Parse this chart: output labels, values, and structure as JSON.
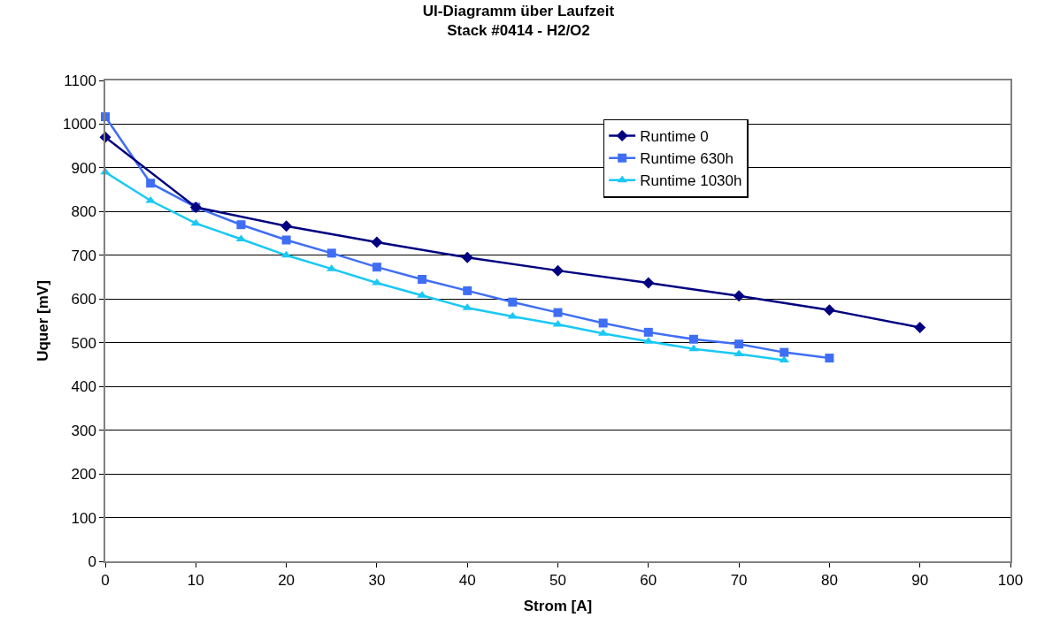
{
  "chart_data": {
    "type": "line",
    "title": "UI-Diagramm über Laufzeit",
    "subtitle": "Stack #0414 - H2/O2",
    "xlabel": "Strom [A]",
    "ylabel": "Uquer [mV]",
    "xlim": [
      0,
      100
    ],
    "xticks": [
      0,
      10,
      20,
      30,
      40,
      50,
      60,
      70,
      80,
      90,
      100
    ],
    "ylim": [
      0,
      1100
    ],
    "yticks": [
      0,
      100,
      200,
      300,
      400,
      500,
      600,
      700,
      800,
      900,
      1000,
      1100
    ],
    "grid": "y",
    "legend": "top right",
    "line_style": "solid",
    "series": [
      {
        "name": "Runtime 0",
        "color": "#000080",
        "marker": "diamond",
        "x": [
          0,
          10,
          20,
          30,
          40,
          50,
          60,
          70,
          80,
          90
        ],
        "values": [
          970,
          810,
          767,
          730,
          695,
          665,
          637,
          607,
          575,
          535
        ]
      },
      {
        "name": "Runtime 630h",
        "color": "#3f6ef5",
        "marker": "square",
        "x": [
          0,
          5,
          10,
          15,
          20,
          25,
          30,
          35,
          40,
          45,
          50,
          55,
          60,
          65,
          70,
          75,
          80
        ],
        "values": [
          1017,
          865,
          810,
          770,
          735,
          705,
          673,
          645,
          619,
          593,
          569,
          545,
          524,
          508,
          497,
          478,
          465
        ]
      },
      {
        "name": "Runtime 1030h",
        "color": "#19c8f5",
        "marker": "triangle",
        "x": [
          0,
          5,
          10,
          15,
          20,
          25,
          30,
          35,
          40,
          45,
          50,
          55,
          60,
          65,
          70,
          75
        ],
        "values": [
          890,
          825,
          773,
          737,
          700,
          669,
          637,
          608,
          580,
          560,
          542,
          521,
          503,
          486,
          474,
          460
        ]
      }
    ]
  }
}
